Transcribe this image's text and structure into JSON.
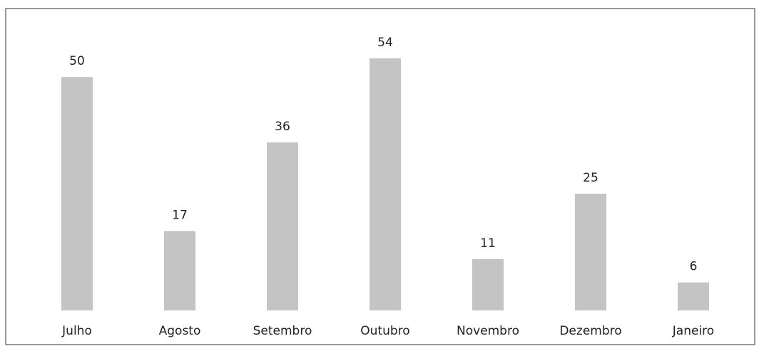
{
  "chart_data": {
    "type": "bar",
    "categories": [
      "Julho",
      "Agosto",
      "Setembro",
      "Outubro",
      "Novembro",
      "Dezembro",
      "Janeiro"
    ],
    "values": [
      50,
      17,
      36,
      54,
      11,
      25,
      6
    ],
    "color": "#c4c4c4"
  }
}
